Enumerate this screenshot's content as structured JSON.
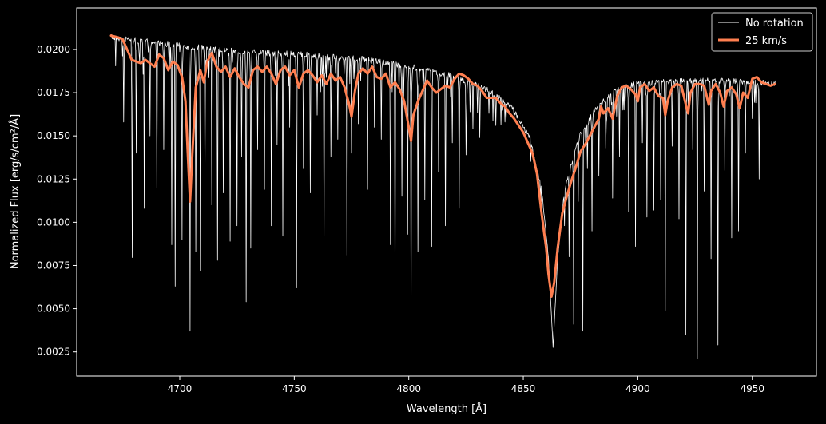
{
  "chart_data": {
    "type": "line",
    "title": "",
    "xlabel": "Wavelength [Å]",
    "ylabel": "Normalized Flux [erg/s/cm²/Å]",
    "xlim": [
      4655,
      4978
    ],
    "ylim": [
      0.0011,
      0.0224
    ],
    "xticks": [
      4700,
      4750,
      4800,
      4850,
      4900,
      4950
    ],
    "yticks": [
      0.0025,
      0.005,
      0.0075,
      0.01,
      0.0125,
      0.015,
      0.0175,
      0.02
    ],
    "xtick_labels": [
      "4700",
      "4750",
      "4800",
      "4850",
      "4900",
      "4950"
    ],
    "ytick_labels": [
      "0.0025",
      "0.0050",
      "0.0075",
      "0.0100",
      "0.0125",
      "0.0150",
      "0.0175",
      "0.0200"
    ],
    "grid": false,
    "legend": {
      "position": "top-right"
    },
    "background": "#000000",
    "series": [
      {
        "name": "No rotation",
        "color": "#ffffff",
        "linewidth": "thin",
        "continuum": [
          [
            4670,
            0.0209
          ],
          [
            4700,
            0.0204
          ],
          [
            4720,
            0.0201
          ],
          [
            4750,
            0.0199
          ],
          [
            4780,
            0.0196
          ],
          [
            4800,
            0.0192
          ],
          [
            4820,
            0.0186
          ],
          [
            4835,
            0.0178
          ],
          [
            4845,
            0.0168
          ],
          [
            4853,
            0.015
          ],
          [
            4858,
            0.012
          ],
          [
            4861,
            0.008
          ],
          [
            4863,
            0.0028
          ],
          [
            4865,
            0.008
          ],
          [
            4868,
            0.012
          ],
          [
            4874,
            0.015
          ],
          [
            4882,
            0.0168
          ],
          [
            4890,
            0.0178
          ],
          [
            4900,
            0.0182
          ],
          [
            4930,
            0.0184
          ],
          [
            4960,
            0.0182
          ]
        ],
        "absorption_lines": [
          [
            4675.5,
            0.0158
          ],
          [
            4679.2,
            0.0068
          ],
          [
            4681,
            0.014
          ],
          [
            4684.5,
            0.0108
          ],
          [
            4687,
            0.015
          ],
          [
            4690,
            0.012
          ],
          [
            4693,
            0.0142
          ],
          [
            4696.5,
            0.0087
          ],
          [
            4698,
            0.0063
          ],
          [
            4701,
            0.009
          ],
          [
            4704.5,
            0.0037
          ],
          [
            4707,
            0.0083
          ],
          [
            4709,
            0.0072
          ],
          [
            4711,
            0.0128
          ],
          [
            4714,
            0.011
          ],
          [
            4716.5,
            0.0078
          ],
          [
            4719,
            0.0117
          ],
          [
            4722,
            0.0089
          ],
          [
            4725,
            0.0098
          ],
          [
            4727,
            0.0138
          ],
          [
            4729,
            0.0054
          ],
          [
            4731,
            0.0085
          ],
          [
            4734,
            0.0142
          ],
          [
            4737,
            0.0119
          ],
          [
            4740,
            0.0098
          ],
          [
            4742.5,
            0.0145
          ],
          [
            4745,
            0.0092
          ],
          [
            4748,
            0.0155
          ],
          [
            4751,
            0.0062
          ],
          [
            4754,
            0.0131
          ],
          [
            4757,
            0.0117
          ],
          [
            4760,
            0.0162
          ],
          [
            4763,
            0.0092
          ],
          [
            4766,
            0.0138
          ],
          [
            4769,
            0.0148
          ],
          [
            4773,
            0.0081
          ],
          [
            4775,
            0.014
          ],
          [
            4778,
            0.0157
          ],
          [
            4782,
            0.0119
          ],
          [
            4785,
            0.0155
          ],
          [
            4788,
            0.0148
          ],
          [
            4792,
            0.0087
          ],
          [
            4794,
            0.0067
          ],
          [
            4797,
            0.0115
          ],
          [
            4799.5,
            0.0093
          ],
          [
            4801,
            0.0049
          ],
          [
            4804,
            0.0083
          ],
          [
            4807,
            0.0113
          ],
          [
            4810,
            0.0086
          ],
          [
            4813,
            0.0129
          ],
          [
            4816,
            0.0098
          ],
          [
            4819,
            0.0146
          ],
          [
            4822,
            0.0108
          ],
          [
            4825,
            0.0139
          ],
          [
            4828,
            0.0154
          ],
          [
            4831,
            0.0149
          ],
          [
            4835,
            0.0163
          ],
          [
            4838,
            0.0156
          ],
          [
            4842,
            0.0158
          ],
          [
            4846,
            0.0161
          ],
          [
            4868,
            0.0098
          ],
          [
            4870,
            0.008
          ],
          [
            4872,
            0.0041
          ],
          [
            4874,
            0.0112
          ],
          [
            4876,
            0.0037
          ],
          [
            4878,
            0.0131
          ],
          [
            4880,
            0.0095
          ],
          [
            4883,
            0.0127
          ],
          [
            4886,
            0.0143
          ],
          [
            4889,
            0.0114
          ],
          [
            4892,
            0.0138
          ],
          [
            4894,
            0.0165
          ],
          [
            4896,
            0.0106
          ],
          [
            4899,
            0.0086
          ],
          [
            4902,
            0.0146
          ],
          [
            4904,
            0.0103
          ],
          [
            4907,
            0.0107
          ],
          [
            4910,
            0.0113
          ],
          [
            4912,
            0.0049
          ],
          [
            4915,
            0.0144
          ],
          [
            4918,
            0.0102
          ],
          [
            4921,
            0.0035
          ],
          [
            4924,
            0.0142
          ],
          [
            4926,
            0.0021
          ],
          [
            4929,
            0.0118
          ],
          [
            4932,
            0.0079
          ],
          [
            4935,
            0.0029
          ],
          [
            4938,
            0.013
          ],
          [
            4941,
            0.0091
          ],
          [
            4944,
            0.0095
          ],
          [
            4947,
            0.014
          ],
          [
            4950,
            0.016
          ],
          [
            4953,
            0.0125
          ]
        ]
      },
      {
        "name": "25 km/s",
        "color": "#ff7f50",
        "linewidth": "thick",
        "points": [
          [
            4670,
            0.0208
          ],
          [
            4673,
            0.0207
          ],
          [
            4675,
            0.0206
          ],
          [
            4677,
            0.02
          ],
          [
            4679,
            0.0194
          ],
          [
            4681,
            0.0193
          ],
          [
            4683,
            0.0192
          ],
          [
            4685,
            0.0194
          ],
          [
            4687,
            0.0192
          ],
          [
            4689,
            0.019
          ],
          [
            4691,
            0.0197
          ],
          [
            4693,
            0.0195
          ],
          [
            4695,
            0.0188
          ],
          [
            4697,
            0.0193
          ],
          [
            4699,
            0.0191
          ],
          [
            4701,
            0.0184
          ],
          [
            4702.5,
            0.017
          ],
          [
            4703.5,
            0.014
          ],
          [
            4704.5,
            0.0112
          ],
          [
            4705.5,
            0.014
          ],
          [
            4707,
            0.0178
          ],
          [
            4709,
            0.0188
          ],
          [
            4710.5,
            0.0181
          ],
          [
            4712,
            0.0193
          ],
          [
            4714,
            0.0198
          ],
          [
            4716,
            0.019
          ],
          [
            4718,
            0.0187
          ],
          [
            4720,
            0.019
          ],
          [
            4722,
            0.0184
          ],
          [
            4724,
            0.0189
          ],
          [
            4726,
            0.0184
          ],
          [
            4728,
            0.018
          ],
          [
            4730,
            0.0178
          ],
          [
            4732,
            0.0188
          ],
          [
            4734,
            0.019
          ],
          [
            4736,
            0.0187
          ],
          [
            4738,
            0.019
          ],
          [
            4740,
            0.0186
          ],
          [
            4742,
            0.018
          ],
          [
            4744,
            0.0188
          ],
          [
            4746,
            0.019
          ],
          [
            4748,
            0.0185
          ],
          [
            4750,
            0.0188
          ],
          [
            4752,
            0.0178
          ],
          [
            4754,
            0.0186
          ],
          [
            4756,
            0.0188
          ],
          [
            4758,
            0.0185
          ],
          [
            4760,
            0.0181
          ],
          [
            4762,
            0.0185
          ],
          [
            4764,
            0.018
          ],
          [
            4766,
            0.0186
          ],
          [
            4768,
            0.0182
          ],
          [
            4770,
            0.0184
          ],
          [
            4772,
            0.0178
          ],
          [
            4774,
            0.0168
          ],
          [
            4775,
            0.0161
          ],
          [
            4776.5,
            0.0176
          ],
          [
            4778,
            0.0186
          ],
          [
            4780,
            0.0189
          ],
          [
            4782,
            0.0186
          ],
          [
            4784,
            0.019
          ],
          [
            4786,
            0.0184
          ],
          [
            4788,
            0.0183
          ],
          [
            4790,
            0.0186
          ],
          [
            4792,
            0.0178
          ],
          [
            4794,
            0.0181
          ],
          [
            4796,
            0.0177
          ],
          [
            4798,
            0.017
          ],
          [
            4800,
            0.0155
          ],
          [
            4801,
            0.0147
          ],
          [
            4802,
            0.0162
          ],
          [
            4804,
            0.017
          ],
          [
            4806,
            0.0176
          ],
          [
            4808,
            0.0182
          ],
          [
            4810,
            0.0178
          ],
          [
            4812,
            0.0175
          ],
          [
            4814,
            0.0177
          ],
          [
            4816,
            0.0179
          ],
          [
            4818,
            0.0178
          ],
          [
            4820,
            0.0183
          ],
          [
            4822,
            0.0186
          ],
          [
            4824,
            0.0185
          ],
          [
            4826,
            0.0183
          ],
          [
            4828,
            0.018
          ],
          [
            4830,
            0.0179
          ],
          [
            4832,
            0.0176
          ],
          [
            4834,
            0.0172
          ],
          [
            4836,
            0.0172
          ],
          [
            4838,
            0.0172
          ],
          [
            4840,
            0.0169
          ],
          [
            4842,
            0.0167
          ],
          [
            4844,
            0.0163
          ],
          [
            4846,
            0.016
          ],
          [
            4848,
            0.0156
          ],
          [
            4850,
            0.0152
          ],
          [
            4852,
            0.0146
          ],
          [
            4854,
            0.014
          ],
          [
            4856,
            0.0128
          ],
          [
            4858,
            0.0105
          ],
          [
            4860,
            0.0085
          ],
          [
            4861,
            0.007
          ],
          [
            4862.3,
            0.0057
          ],
          [
            4863.5,
            0.0065
          ],
          [
            4865,
            0.0085
          ],
          [
            4867,
            0.0105
          ],
          [
            4869,
            0.0115
          ],
          [
            4871,
            0.0124
          ],
          [
            4873,
            0.0132
          ],
          [
            4875,
            0.0141
          ],
          [
            4877,
            0.0145
          ],
          [
            4879,
            0.015
          ],
          [
            4881,
            0.0155
          ],
          [
            4883,
            0.016
          ],
          [
            4884,
            0.0167
          ],
          [
            4885,
            0.0163
          ],
          [
            4887,
            0.0166
          ],
          [
            4889,
            0.016
          ],
          [
            4891,
            0.0173
          ],
          [
            4893,
            0.0178
          ],
          [
            4895,
            0.0179
          ],
          [
            4897,
            0.0177
          ],
          [
            4899,
            0.0174
          ],
          [
            4900,
            0.017
          ],
          [
            4901,
            0.0178
          ],
          [
            4903,
            0.018
          ],
          [
            4905,
            0.0176
          ],
          [
            4907,
            0.0178
          ],
          [
            4909,
            0.0173
          ],
          [
            4911,
            0.0172
          ],
          [
            4912,
            0.0162
          ],
          [
            4913,
            0.017
          ],
          [
            4915,
            0.0178
          ],
          [
            4917,
            0.018
          ],
          [
            4919,
            0.0179
          ],
          [
            4921,
            0.0168
          ],
          [
            4922,
            0.0163
          ],
          [
            4923,
            0.0175
          ],
          [
            4925,
            0.018
          ],
          [
            4927,
            0.018
          ],
          [
            4929,
            0.0179
          ],
          [
            4931,
            0.0168
          ],
          [
            4932,
            0.0176
          ],
          [
            4934,
            0.018
          ],
          [
            4936,
            0.0175
          ],
          [
            4937.5,
            0.0167
          ],
          [
            4939,
            0.0176
          ],
          [
            4941,
            0.0178
          ],
          [
            4943,
            0.0174
          ],
          [
            4944.5,
            0.0166
          ],
          [
            4946,
            0.0175
          ],
          [
            4948,
            0.0172
          ],
          [
            4950,
            0.0183
          ],
          [
            4952,
            0.0184
          ],
          [
            4954,
            0.0181
          ],
          [
            4956,
            0.018
          ],
          [
            4958,
            0.0179
          ],
          [
            4960,
            0.018
          ]
        ]
      }
    ]
  }
}
